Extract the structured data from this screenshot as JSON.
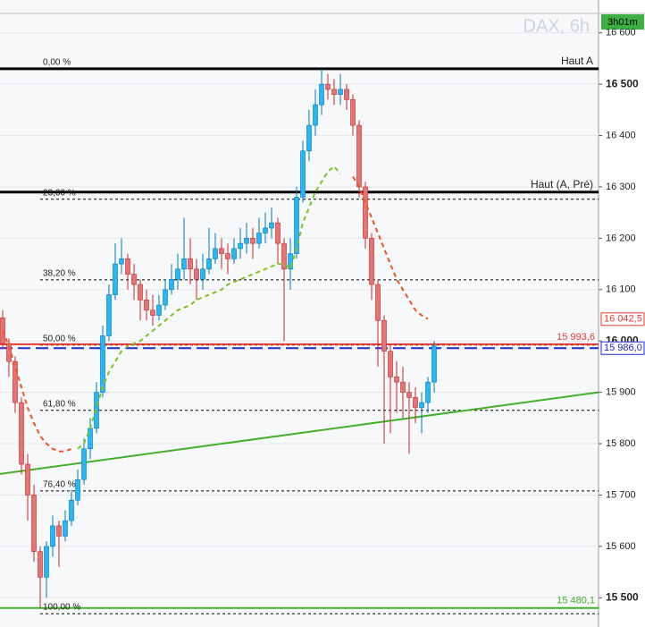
{
  "chart_data": {
    "type": "candlestick",
    "watermark": "DAX, 6h",
    "timer": "3h01m",
    "ylim": [
      15443,
      16664
    ],
    "yticks": [
      {
        "value": 15500,
        "label": "15 500"
      },
      {
        "value": 15600,
        "label": "15 600"
      },
      {
        "value": 15700,
        "label": "15 700"
      },
      {
        "value": 15800,
        "label": "15 800"
      },
      {
        "value": 15900,
        "label": "15 900"
      },
      {
        "value": 16000,
        "label": "16 000"
      },
      {
        "value": 16100,
        "label": "16 100"
      },
      {
        "value": 16200,
        "label": "16 200"
      },
      {
        "value": 16300,
        "label": "16 300"
      },
      {
        "value": 16400,
        "label": "16 400"
      },
      {
        "value": 16500,
        "label": "16 500"
      },
      {
        "value": 16600,
        "label": "16 600"
      }
    ],
    "grid": true,
    "up_color": "#29b6f6",
    "down_color": "#e57373",
    "candles": {
      "open": [
        16045,
        15995,
        15960,
        15880,
        15760,
        15700,
        15590,
        15540,
        15600,
        15640,
        15620,
        15650,
        15690,
        15730,
        15790,
        15830,
        15900,
        16010,
        16090,
        16150,
        16160,
        16130,
        16110,
        16080,
        16060,
        16050,
        16070,
        16100,
        16120,
        16140,
        16160,
        16140,
        16120,
        16140,
        16160,
        16180,
        16170,
        16160,
        16180,
        16190,
        16200,
        16190,
        16210,
        16220,
        16230,
        16190,
        16140,
        16170,
        16280,
        16370,
        16420,
        16460,
        16500,
        16490,
        16480,
        16490,
        16470,
        16420,
        16300,
        16200,
        16110,
        16040,
        15980,
        15930,
        15920,
        15900,
        15890,
        15870,
        15880,
        15920
      ],
      "high": [
        16060,
        16005,
        15970,
        15890,
        15780,
        15720,
        15600,
        15610,
        15660,
        15650,
        15670,
        15710,
        15750,
        15810,
        15850,
        15920,
        16030,
        16110,
        16190,
        16200,
        16170,
        16150,
        16120,
        16100,
        16090,
        16090,
        16120,
        16150,
        16170,
        16240,
        16200,
        16160,
        16170,
        16220,
        16210,
        16200,
        16190,
        16200,
        16220,
        16230,
        16220,
        16240,
        16250,
        16260,
        16240,
        16200,
        16200,
        16300,
        16390,
        16450,
        16490,
        16530,
        16520,
        16510,
        16520,
        16500,
        16480,
        16430,
        16310,
        16210,
        16120,
        16050,
        15990,
        15960,
        15950,
        15920,
        15910,
        15900,
        15930,
        16000
      ],
      "low": [
        15985,
        15930,
        15860,
        15740,
        15650,
        15570,
        15480,
        15500,
        15580,
        15560,
        15610,
        15640,
        15680,
        15720,
        15770,
        15820,
        15890,
        16000,
        16080,
        16130,
        16100,
        16080,
        16040,
        16040,
        16030,
        16040,
        16060,
        16090,
        16100,
        16120,
        16110,
        16080,
        16100,
        16130,
        16150,
        16140,
        16130,
        16150,
        16160,
        16170,
        16160,
        16180,
        16190,
        16200,
        16150,
        16000,
        16100,
        16160,
        16270,
        16350,
        16400,
        16440,
        16470,
        16460,
        16460,
        16450,
        16400,
        16280,
        16180,
        16080,
        15950,
        15800,
        15820,
        15860,
        15850,
        15780,
        15840,
        15820,
        15860,
        15900
      ],
      "close": [
        15995,
        15960,
        15880,
        15760,
        15700,
        15590,
        15540,
        15600,
        15640,
        15620,
        15650,
        15690,
        15730,
        15790,
        15830,
        15900,
        16010,
        16090,
        16150,
        16160,
        16130,
        16110,
        16080,
        16060,
        16050,
        16070,
        16100,
        16120,
        16140,
        16160,
        16140,
        16120,
        16140,
        16160,
        16180,
        16170,
        16160,
        16180,
        16190,
        16200,
        16190,
        16210,
        16220,
        16230,
        16190,
        16140,
        16170,
        16280,
        16370,
        16420,
        16460,
        16500,
        16490,
        16480,
        16490,
        16470,
        16420,
        16300,
        16200,
        16110,
        16040,
        15980,
        15930,
        15920,
        15900,
        15890,
        15870,
        15880,
        15920,
        15990
      ]
    },
    "series": [
      {
        "color": "#f4511e",
        "values": [
          16020,
          15990,
          15950,
          15910,
          15870,
          15840,
          15815,
          15800,
          15790,
          15785,
          15785,
          15790,
          null,
          null,
          null,
          null,
          null,
          null,
          null,
          null,
          null,
          null,
          null,
          null,
          null,
          null,
          null,
          null,
          null,
          null,
          null,
          null,
          null,
          null,
          null,
          null,
          null,
          null,
          null,
          null,
          null,
          null,
          null,
          null,
          null,
          null,
          null,
          null,
          null,
          null,
          null,
          null,
          null,
          null,
          null,
          null,
          16320,
          16300,
          16270,
          16240,
          16210,
          16180,
          16150,
          16120,
          16100,
          16080,
          16060,
          16050,
          16043,
          null
        ]
      },
      {
        "color": "#7cc520",
        "values": [
          null,
          null,
          null,
          null,
          null,
          null,
          null,
          null,
          null,
          null,
          null,
          null,
          15790,
          15800,
          15830,
          15870,
          15910,
          15940,
          15960,
          15980,
          15990,
          15995,
          16000,
          16010,
          16020,
          16030,
          16040,
          16050,
          16060,
          16065,
          16070,
          16080,
          16085,
          16090,
          16095,
          16100,
          16110,
          16115,
          16120,
          16125,
          16130,
          16135,
          16140,
          16145,
          16150,
          16150,
          16140,
          16180,
          16230,
          16260,
          16290,
          16310,
          16330,
          16340,
          16325,
          null,
          null,
          null,
          null,
          null,
          null,
          null,
          null,
          null,
          null,
          null,
          null,
          null,
          null,
          null
        ]
      }
    ],
    "trendline": {
      "start": 15741,
      "end": 15900,
      "color": "#43b02a"
    },
    "fib_levels": [
      {
        "label": "0,00 %",
        "value": 16530
      },
      {
        "label": "23,60 %",
        "value": 16276
      },
      {
        "label": "38,20 %",
        "value": 16119
      },
      {
        "label": "50,00 %",
        "value": 15992
      },
      {
        "label": "61,80 %",
        "value": 15865
      },
      {
        "label": "76,40 %",
        "value": 15708
      },
      {
        "label": "100,00 %",
        "value": 15469
      }
    ],
    "levels": [
      {
        "label": "Haut A",
        "value": 16530,
        "color": "#000000"
      },
      {
        "label": "Haut (A, Pré)",
        "value": 16290,
        "color": "#000000"
      }
    ],
    "price_lines": [
      {
        "value": 15993.6,
        "label": "15 993,6",
        "color": "#e53935",
        "style": "solid",
        "boxed": false
      },
      {
        "value": 15986.0,
        "label": "15 986,0",
        "color": "#1e2bd6",
        "style": "dashed",
        "boxed": true
      },
      {
        "value": 15480.1,
        "label": "15 480,1",
        "color": "#43b02a",
        "style": "solid",
        "boxed": false
      }
    ],
    "price_tags": [
      {
        "value": 16042.5,
        "label": "16 042,5",
        "color": "#e53935"
      }
    ]
  }
}
